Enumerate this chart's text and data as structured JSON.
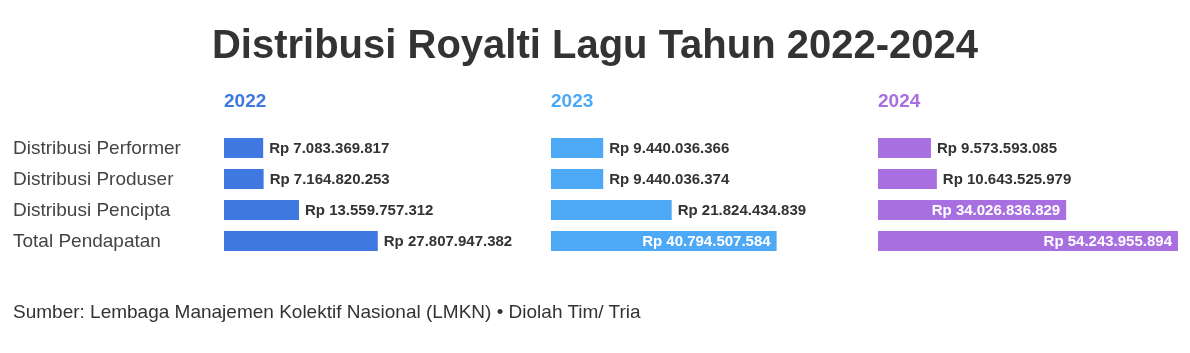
{
  "chart_data": [
    {
      "type": "other",
      "title": "Distribusi Royalti Lagu Tahun 2022-2024"
    },
    {
      "type": "bar",
      "orientation": "horizontal",
      "title": "2022",
      "color": "#3f78e0",
      "tick_labels": "y",
      "categories": [
        "Distribusi Performer",
        "Distribusi Produser",
        "Distribusi Pencipta",
        "Total Pendapatan"
      ],
      "values": [
        7083369817,
        7164820253,
        13559757312,
        27807947382
      ],
      "value_labels": [
        "Rp 7.083.369.817",
        "Rp 7.164.820.253",
        "Rp 13.559.757.312",
        "Rp 27.807.947.382"
      ]
    },
    {
      "type": "bar",
      "orientation": "horizontal",
      "title": "2023",
      "color": "#4da8f6",
      "tick_labels": false,
      "categories": [
        null,
        null,
        null,
        null
      ],
      "values": [
        9440036366,
        9440036374,
        21824434839,
        40794507584
      ],
      "value_labels": [
        "Rp 9.440.036.366",
        "Rp 9.440.036.374",
        "Rp 21.824.434.839",
        "Rp 40.794.507.584"
      ]
    },
    {
      "type": "bar",
      "orientation": "horizontal",
      "title": "2024",
      "color": "#a86fe0",
      "tick_labels": false,
      "categories": [
        null,
        null,
        null,
        null
      ],
      "values": [
        9573593085,
        10643525979,
        34026836829,
        54243955894
      ],
      "value_labels": [
        "Rp 9.573.593.085",
        "Rp 10.643.525.979",
        "Rp 34.026.836.829",
        "Rp 54.243.955.894"
      ]
    },
    {
      "type": "other",
      "annotations": [
        "Sumber: Lembaga Manajemen Kolektif Nasional (LMKN) • Diolah Tim/ Tria"
      ]
    }
  ]
}
